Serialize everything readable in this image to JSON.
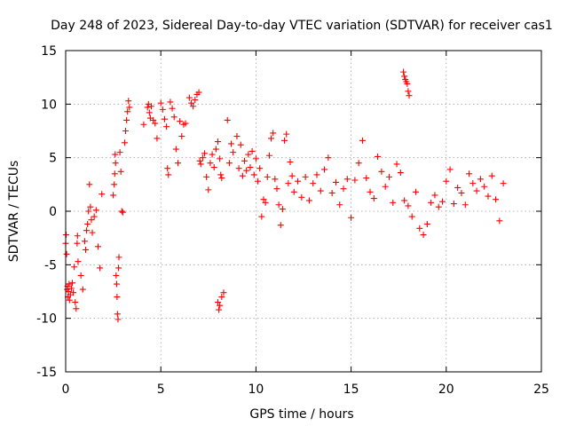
{
  "chart_data": {
    "type": "scatter",
    "title": "Day 248 of 2023, Sidereal Day-to-day VTEC variation (SDTVAR) for receiver cas1",
    "xlabel": "GPS time / hours",
    "ylabel": "SDTVAR / TECUs",
    "xlim": [
      0,
      25
    ],
    "ylim": [
      -15,
      15
    ],
    "xticks": [
      0,
      5,
      10,
      15,
      20,
      25
    ],
    "yticks": [
      -15,
      -10,
      -5,
      0,
      5,
      10,
      15
    ],
    "xtick_labels": [
      "0",
      "5",
      "10",
      "15",
      "20",
      "25"
    ],
    "ytick_labels": [
      "-15",
      "-10",
      "-5",
      "0",
      "5",
      "10",
      "15"
    ],
    "grid": true,
    "marker": "plus",
    "series": [
      {
        "name": "SDTVAR",
        "color": "#ff0000",
        "points": [
          [
            0.0,
            -3.0
          ],
          [
            0.02,
            -2.2
          ],
          [
            0.05,
            -4.0
          ],
          [
            0.08,
            -7.3
          ],
          [
            0.1,
            -7.0
          ],
          [
            0.12,
            -8.0
          ],
          [
            0.15,
            -7.5
          ],
          [
            0.18,
            -6.8
          ],
          [
            0.2,
            -8.3
          ],
          [
            0.25,
            -7.8
          ],
          [
            0.3,
            -7.2
          ],
          [
            0.35,
            -6.7
          ],
          [
            0.4,
            -7.6
          ],
          [
            0.45,
            -5.2
          ],
          [
            0.5,
            -8.5
          ],
          [
            0.55,
            -9.1
          ],
          [
            0.6,
            -3.0
          ],
          [
            0.62,
            -2.3
          ],
          [
            0.65,
            -4.7
          ],
          [
            0.8,
            -6.0
          ],
          [
            0.9,
            -7.3
          ],
          [
            1.0,
            -2.8
          ],
          [
            1.05,
            -3.6
          ],
          [
            1.1,
            -1.8
          ],
          [
            1.15,
            -1.2
          ],
          [
            1.2,
            0.0
          ],
          [
            1.25,
            2.5
          ],
          [
            1.3,
            0.4
          ],
          [
            1.35,
            -0.8
          ],
          [
            1.4,
            -2.0
          ],
          [
            1.5,
            -0.5
          ],
          [
            1.6,
            0.1
          ],
          [
            1.7,
            -3.3
          ],
          [
            1.8,
            -5.3
          ],
          [
            1.9,
            1.6
          ],
          [
            2.5,
            1.5
          ],
          [
            2.55,
            2.5
          ],
          [
            2.58,
            3.5
          ],
          [
            2.6,
            5.3
          ],
          [
            2.62,
            4.5
          ],
          [
            2.65,
            -6.0
          ],
          [
            2.68,
            -6.8
          ],
          [
            2.7,
            -8.0
          ],
          [
            2.72,
            -9.6
          ],
          [
            2.75,
            -10.1
          ],
          [
            2.78,
            -5.3
          ],
          [
            2.8,
            -4.3
          ],
          [
            2.85,
            5.5
          ],
          [
            2.9,
            3.7
          ],
          [
            2.95,
            0.0
          ],
          [
            3.0,
            -0.1
          ],
          [
            3.1,
            6.4
          ],
          [
            3.15,
            7.5
          ],
          [
            3.2,
            8.5
          ],
          [
            3.25,
            9.3
          ],
          [
            3.3,
            10.3
          ],
          [
            3.35,
            9.7
          ],
          [
            4.1,
            8.1
          ],
          [
            4.3,
            9.7
          ],
          [
            4.35,
            10.0
          ],
          [
            4.4,
            9.2
          ],
          [
            4.45,
            8.7
          ],
          [
            4.5,
            9.8
          ],
          [
            4.6,
            8.5
          ],
          [
            4.7,
            8.2
          ],
          [
            4.8,
            6.8
          ],
          [
            5.0,
            10.1
          ],
          [
            5.1,
            9.5
          ],
          [
            5.2,
            8.6
          ],
          [
            5.3,
            7.9
          ],
          [
            5.35,
            4.0
          ],
          [
            5.4,
            3.4
          ],
          [
            5.5,
            10.2
          ],
          [
            5.6,
            9.6
          ],
          [
            5.7,
            8.8
          ],
          [
            5.8,
            5.8
          ],
          [
            5.9,
            4.5
          ],
          [
            6.0,
            8.4
          ],
          [
            6.1,
            7.0
          ],
          [
            6.2,
            8.1
          ],
          [
            6.3,
            8.2
          ],
          [
            6.5,
            10.6
          ],
          [
            6.6,
            10.1
          ],
          [
            6.7,
            9.8
          ],
          [
            6.8,
            10.4
          ],
          [
            6.9,
            10.9
          ],
          [
            7.0,
            11.1
          ],
          [
            7.05,
            4.7
          ],
          [
            7.1,
            4.4
          ],
          [
            7.2,
            5.0
          ],
          [
            7.3,
            5.4
          ],
          [
            7.4,
            3.2
          ],
          [
            7.5,
            2.0
          ],
          [
            7.6,
            4.5
          ],
          [
            7.7,
            5.3
          ],
          [
            7.8,
            4.1
          ],
          [
            7.9,
            5.8
          ],
          [
            8.0,
            6.5
          ],
          [
            8.1,
            4.9
          ],
          [
            8.15,
            3.4
          ],
          [
            8.2,
            3.1
          ],
          [
            8.0,
            -8.5
          ],
          [
            8.05,
            -9.2
          ],
          [
            8.1,
            -8.8
          ],
          [
            8.2,
            -8.0
          ],
          [
            8.3,
            -7.6
          ],
          [
            8.5,
            8.5
          ],
          [
            8.6,
            4.5
          ],
          [
            8.7,
            6.3
          ],
          [
            8.8,
            5.5
          ],
          [
            9.0,
            7.0
          ],
          [
            9.1,
            4.0
          ],
          [
            9.2,
            6.2
          ],
          [
            9.3,
            3.3
          ],
          [
            9.4,
            4.7
          ],
          [
            9.5,
            3.8
          ],
          [
            9.6,
            5.3
          ],
          [
            9.7,
            4.1
          ],
          [
            9.8,
            5.6
          ],
          [
            9.9,
            3.4
          ],
          [
            10.0,
            4.9
          ],
          [
            10.1,
            2.8
          ],
          [
            10.2,
            4.0
          ],
          [
            10.3,
            -0.5
          ],
          [
            10.4,
            1.1
          ],
          [
            10.5,
            0.8
          ],
          [
            10.6,
            3.2
          ],
          [
            10.7,
            5.2
          ],
          [
            10.8,
            6.8
          ],
          [
            10.9,
            7.3
          ],
          [
            11.0,
            3.0
          ],
          [
            11.1,
            2.1
          ],
          [
            11.2,
            0.6
          ],
          [
            11.3,
            -1.3
          ],
          [
            11.4,
            0.2
          ],
          [
            11.5,
            6.6
          ],
          [
            11.6,
            7.2
          ],
          [
            11.7,
            2.6
          ],
          [
            11.8,
            4.6
          ],
          [
            11.9,
            3.3
          ],
          [
            12.0,
            1.8
          ],
          [
            12.2,
            2.8
          ],
          [
            12.4,
            1.3
          ],
          [
            12.6,
            3.2
          ],
          [
            12.8,
            1.0
          ],
          [
            13.0,
            2.6
          ],
          [
            13.2,
            3.4
          ],
          [
            13.4,
            1.9
          ],
          [
            13.6,
            3.9
          ],
          [
            13.8,
            5.0
          ],
          [
            14.0,
            1.7
          ],
          [
            14.2,
            2.7
          ],
          [
            14.4,
            0.6
          ],
          [
            14.6,
            2.1
          ],
          [
            14.8,
            3.0
          ],
          [
            15.0,
            -0.6
          ],
          [
            15.2,
            2.9
          ],
          [
            15.4,
            4.5
          ],
          [
            15.6,
            6.6
          ],
          [
            15.8,
            3.1
          ],
          [
            16.0,
            1.8
          ],
          [
            16.2,
            1.2
          ],
          [
            16.4,
            5.1
          ],
          [
            16.6,
            3.7
          ],
          [
            16.8,
            2.3
          ],
          [
            17.0,
            3.2
          ],
          [
            17.2,
            0.8
          ],
          [
            17.4,
            4.4
          ],
          [
            17.6,
            3.6
          ],
          [
            17.8,
            1.0
          ],
          [
            18.0,
            0.5
          ],
          [
            18.2,
            -0.5
          ],
          [
            18.4,
            1.8
          ],
          [
            18.6,
            -1.6
          ],
          [
            18.8,
            -2.2
          ],
          [
            19.0,
            -1.2
          ],
          [
            19.2,
            0.8
          ],
          [
            19.4,
            1.5
          ],
          [
            19.6,
            0.4
          ],
          [
            19.8,
            0.9
          ],
          [
            20.0,
            2.8
          ],
          [
            20.2,
            3.9
          ],
          [
            20.4,
            0.7
          ],
          [
            20.6,
            2.2
          ],
          [
            20.8,
            1.7
          ],
          [
            21.0,
            0.6
          ],
          [
            21.2,
            3.5
          ],
          [
            21.4,
            2.6
          ],
          [
            21.6,
            1.9
          ],
          [
            21.8,
            3.0
          ],
          [
            22.0,
            2.3
          ],
          [
            22.2,
            1.4
          ],
          [
            22.4,
            3.3
          ],
          [
            22.6,
            1.1
          ],
          [
            22.8,
            -0.9
          ],
          [
            23.0,
            2.6
          ],
          [
            17.75,
            13.0
          ],
          [
            17.8,
            12.6
          ],
          [
            17.85,
            12.3
          ],
          [
            17.9,
            12.1
          ],
          [
            17.95,
            11.9
          ],
          [
            18.0,
            11.2
          ],
          [
            18.05,
            10.8
          ]
        ]
      }
    ]
  }
}
